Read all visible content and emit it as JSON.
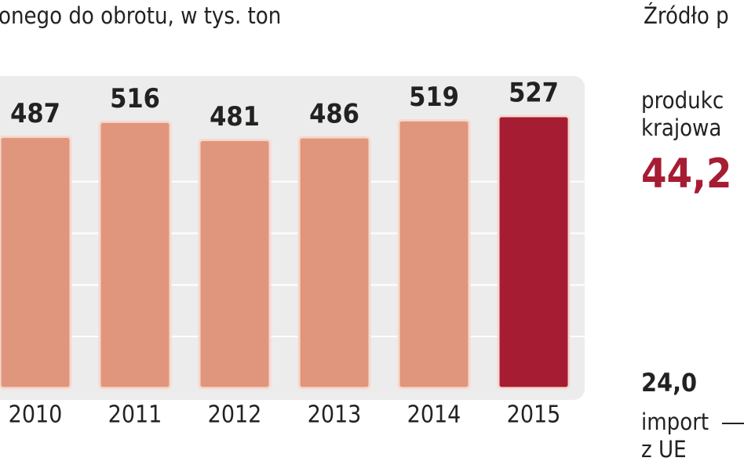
{
  "chart_data": {
    "type": "bar",
    "subtitle": "onego do obrotu, w tys. ton",
    "source": "Źródło p",
    "categories": [
      "2010",
      "2011",
      "2012",
      "2013",
      "2014",
      "2015"
    ],
    "values": [
      487,
      516,
      481,
      486,
      519,
      527
    ],
    "colors": [
      "#e0967c",
      "#e0967c",
      "#e0967c",
      "#e0967c",
      "#e0967c",
      "#a61d33"
    ],
    "ylim": [
      0,
      600
    ],
    "yticks": [
      100,
      200,
      300,
      400
    ],
    "grid": true,
    "side": {
      "names": [
        [
          "produkc",
          "krajowa"
        ],
        [
          "import",
          "z UE"
        ]
      ],
      "values": [
        {
          "value": 44.2,
          "label": "44,2"
        },
        {
          "value": 24.0,
          "label": "24,0"
        }
      ],
      "colors": [
        "#a61d33",
        "#222222"
      ]
    }
  }
}
